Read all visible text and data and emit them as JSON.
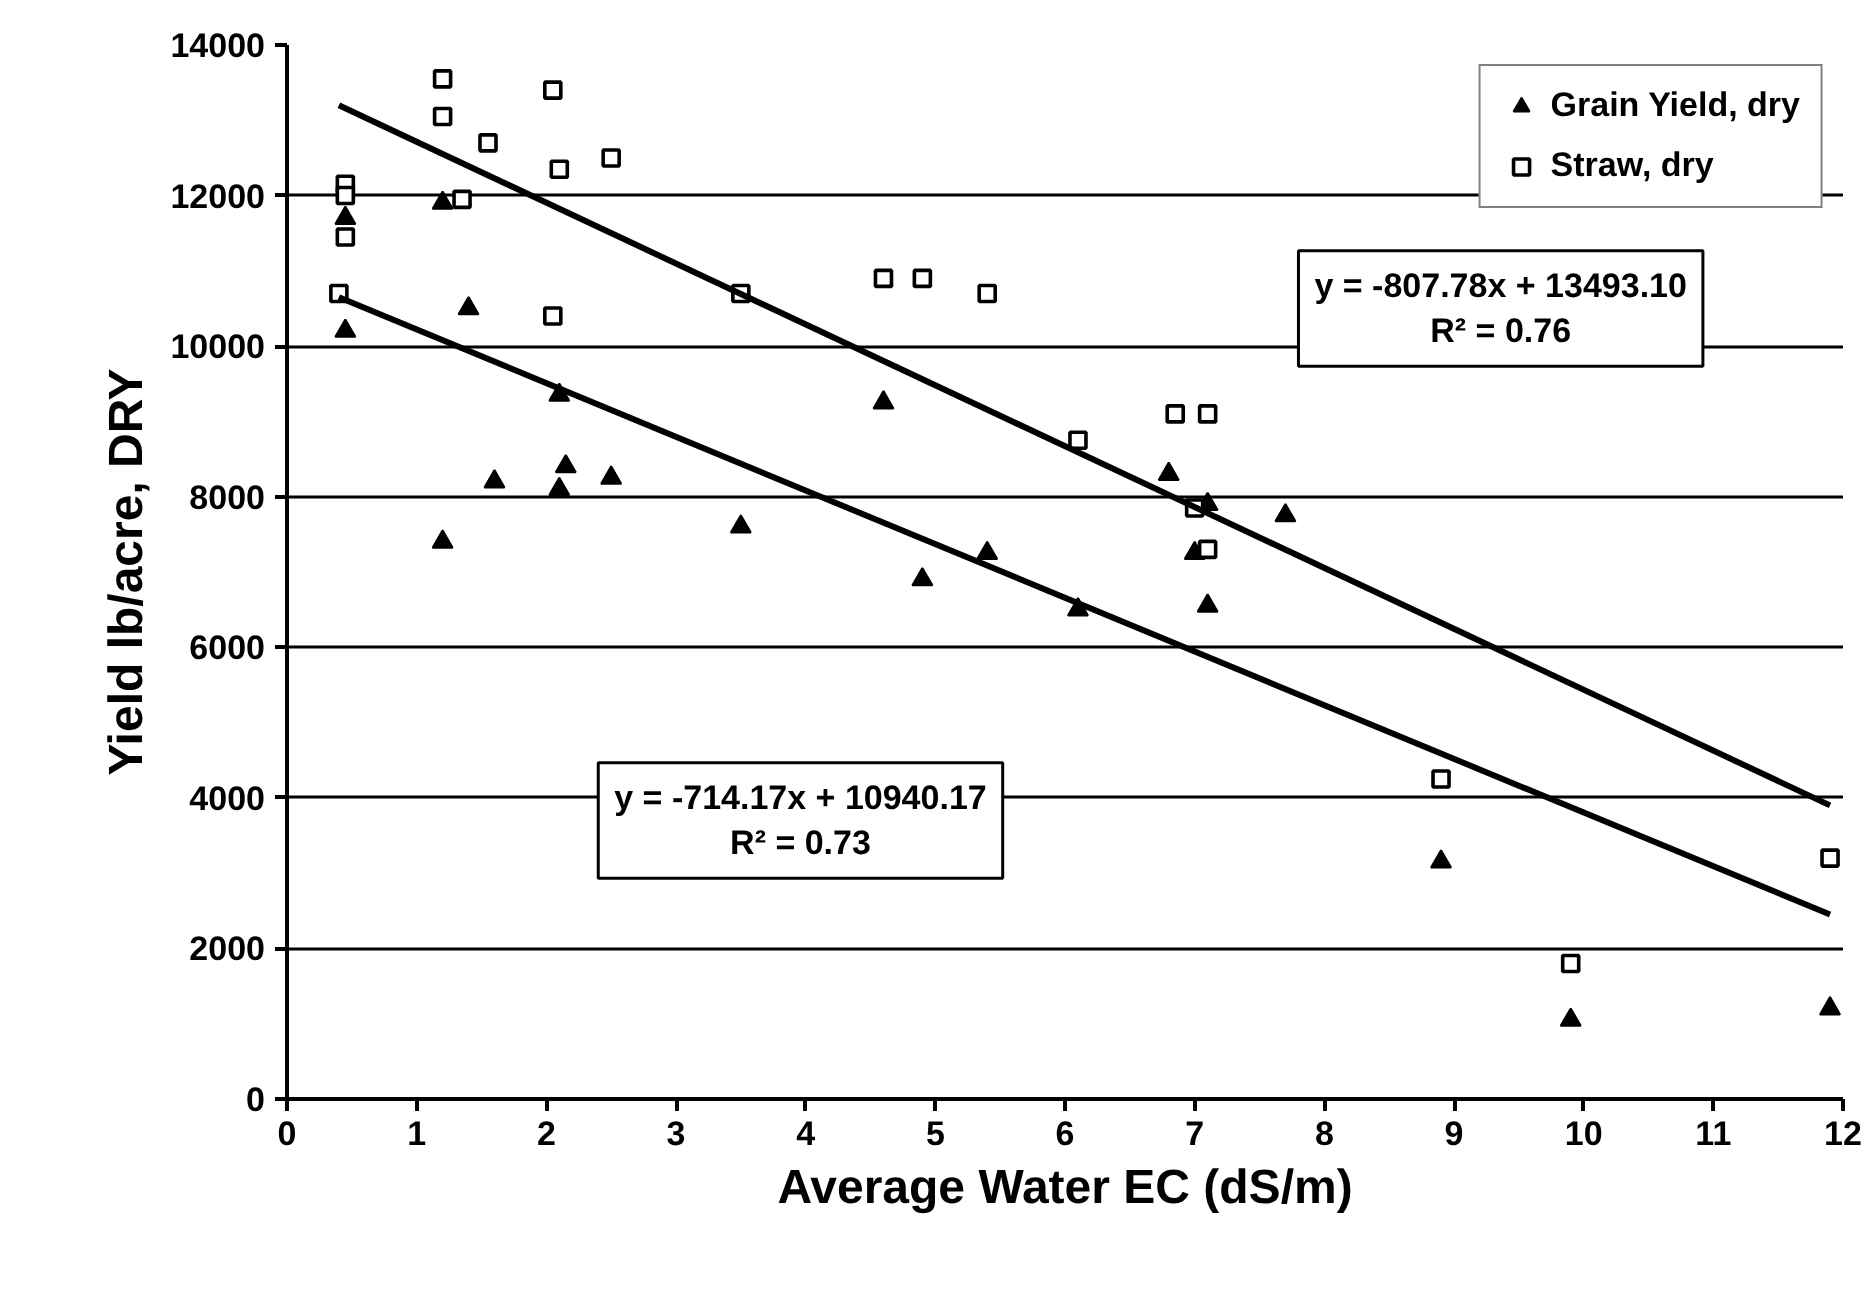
{
  "chart_data": {
    "type": "scatter",
    "xlabel": "Average Water EC (dS/m)",
    "ylabel": "Yield lb/acre, DRY",
    "xlim": [
      0,
      12
    ],
    "xticks": [
      0,
      1,
      2,
      3,
      4,
      5,
      6,
      7,
      8,
      9,
      10,
      11,
      12
    ],
    "ylim": [
      0,
      14000
    ],
    "yticks": [
      0,
      2000,
      4000,
      6000,
      8000,
      10000,
      12000,
      14000
    ],
    "grid": "y",
    "legend": "top right",
    "annotations": [
      "y = -807.78x + 13493.10\nR² = 0.76",
      "y = -714.17x + 10940.17\nR² = 0.73"
    ],
    "series": [
      {
        "name": "Grain Yield, dry",
        "color": "#000000",
        "marker": "triangle",
        "x": [
          0.45,
          0.45,
          1.2,
          1.2,
          1.4,
          1.6,
          2.1,
          2.1,
          2.15,
          2.5,
          3.5,
          4.6,
          4.9,
          5.4,
          6.1,
          6.8,
          7.0,
          7.1,
          7.1,
          7.7,
          8.9,
          9.9,
          11.9
        ],
        "values": [
          11700,
          10200,
          11900,
          7400,
          10500,
          8200,
          9350,
          8100,
          8400,
          8250,
          7600,
          9250,
          6900,
          7250,
          6500,
          8300,
          7250,
          6550,
          7900,
          7750,
          3150,
          1050,
          1200
        ]
      },
      {
        "name": "Straw, dry",
        "color": "#000000",
        "marker": "square",
        "x": [
          0.45,
          0.45,
          0.45,
          0.4,
          1.2,
          1.2,
          1.35,
          1.55,
          2.05,
          2.1,
          2.05,
          2.5,
          3.5,
          4.6,
          4.9,
          5.4,
          6.1,
          6.85,
          7.1,
          7.0,
          7.1,
          8.9,
          9.9,
          11.9
        ],
        "values": [
          12150,
          12000,
          11450,
          10700,
          13550,
          13050,
          11950,
          12700,
          13400,
          12350,
          10400,
          12500,
          10700,
          10900,
          10900,
          10700,
          8750,
          9100,
          9100,
          7850,
          7300,
          4250,
          1800,
          3200
        ]
      },
      {
        "type": "line",
        "color": "#000000",
        "x": [
          0.4,
          11.9
        ],
        "values": [
          13200,
          3900
        ]
      },
      {
        "type": "line",
        "color": "#000000",
        "x": [
          0.4,
          11.9
        ],
        "values": [
          10650,
          2450
        ]
      }
    ]
  }
}
